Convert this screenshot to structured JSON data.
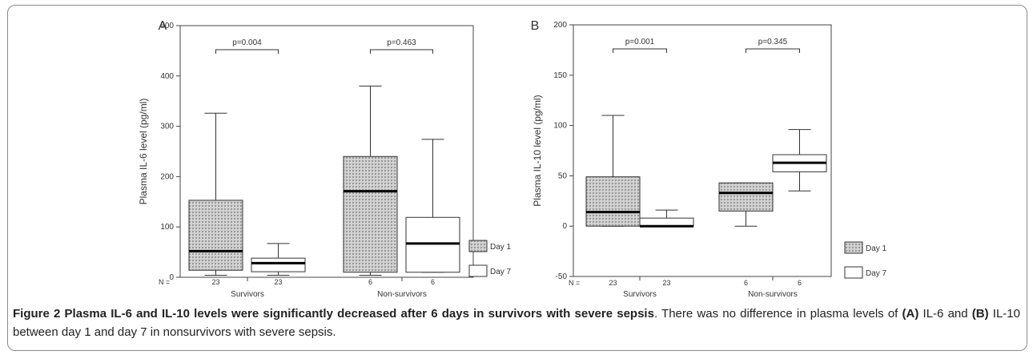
{
  "figure": {
    "caption": {
      "lead": "Figure 2 Plasma IL-6 and IL-10 levels were significantly decreased after 6 days in survivors with severe sepsis",
      "body1": ". There was no difference in plasma levels of ",
      "ref_a": "(A)",
      "body2": " IL-6 and ",
      "ref_b": "(B)",
      "body3": " IL-10 between day 1 and day 7 in nonsurvivors with severe sepsis."
    }
  },
  "colors": {
    "day1_fill": "#c8c8c8",
    "day7_fill": "#ffffff",
    "stroke": "#333333"
  },
  "chart_data": [
    {
      "type": "box",
      "panel_label": "A",
      "ylabel": "Plasma IL-6 level (pg/ml)",
      "ylim": [
        0,
        500
      ],
      "yticks": [
        0,
        100,
        200,
        300,
        400,
        500
      ],
      "n_label": "N =",
      "groups": [
        {
          "label": "Survivors",
          "p_value": "p=0.004",
          "boxes": [
            {
              "series": "Day 1",
              "n": "23",
              "min": 4,
              "q1": 14,
              "median": 52,
              "q3": 153,
              "max": 326
            },
            {
              "series": "Day 7",
              "n": "23",
              "min": 4,
              "q1": 11,
              "median": 28,
              "q3": 38,
              "max": 67
            }
          ]
        },
        {
          "label": "Non-survivors",
          "p_value": "p=0.463",
          "boxes": [
            {
              "series": "Day 1",
              "n": "6",
              "min": 4,
              "q1": 10,
              "median": 171,
              "q3": 240,
              "max": 380
            },
            {
              "series": "Day 7",
              "n": "6",
              "min": 10,
              "q1": 10,
              "median": 67,
              "q3": 119,
              "max": 274
            }
          ]
        }
      ],
      "legend": [
        "Day 1",
        "Day 7"
      ],
      "legend_position": "bottom-right"
    },
    {
      "type": "box",
      "panel_label": "B",
      "ylabel": "Plasma IL-10 level (pg/ml)",
      "ylim": [
        -50,
        200
      ],
      "yticks": [
        -50,
        0,
        50,
        100,
        150,
        200
      ],
      "n_label": "N =",
      "groups": [
        {
          "label": "Survivors",
          "p_value": "p=0.001",
          "boxes": [
            {
              "series": "Day 1",
              "n": "23",
              "min": 0,
              "q1": 0,
              "median": 14,
              "q3": 49,
              "max": 110
            },
            {
              "series": "Day 7",
              "n": "23",
              "min": 0,
              "q1": 0,
              "median": 0,
              "q3": 8,
              "max": 16
            }
          ]
        },
        {
          "label": "Non-survivors",
          "p_value": "p=0.345",
          "boxes": [
            {
              "series": "Day 1",
              "n": "6",
              "min": 0,
              "q1": 15,
              "median": 33,
              "q3": 43,
              "max": 43
            },
            {
              "series": "Day 7",
              "n": "6",
              "min": 35,
              "q1": 54,
              "median": 63,
              "q3": 71,
              "max": 96
            }
          ]
        }
      ],
      "legend": [
        "Day 1",
        "Day 7"
      ],
      "legend_position": "bottom-right"
    }
  ]
}
